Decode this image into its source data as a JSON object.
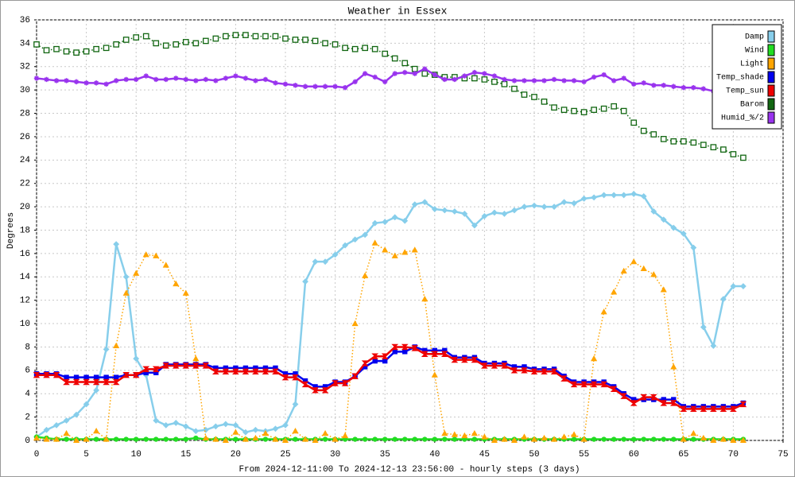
{
  "chart_data": {
    "type": "line",
    "title": "Weather in Essex",
    "ylabel": "Degrees",
    "xlabel": "From 2024-12-11:00 To 2024-12-13 23:56:00 - hourly steps (3 days)",
    "xlim": [
      0,
      75
    ],
    "xticks": [
      0,
      5,
      10,
      15,
      20,
      25,
      30,
      35,
      40,
      45,
      50,
      55,
      60,
      65,
      70,
      75
    ],
    "ylim": [
      0,
      36
    ],
    "yticks": [
      0,
      2,
      4,
      6,
      8,
      10,
      12,
      14,
      16,
      18,
      20,
      22,
      24,
      26,
      28,
      30,
      32,
      34,
      36
    ],
    "grid": true,
    "legend": "top-right",
    "x": [
      0,
      1,
      2,
      3,
      4,
      5,
      6,
      7,
      8,
      9,
      10,
      11,
      12,
      13,
      14,
      15,
      16,
      17,
      18,
      19,
      20,
      21,
      22,
      23,
      24,
      25,
      26,
      27,
      28,
      29,
      30,
      31,
      32,
      33,
      34,
      35,
      36,
      37,
      38,
      39,
      40,
      41,
      42,
      43,
      44,
      45,
      46,
      47,
      48,
      49,
      50,
      51,
      52,
      53,
      54,
      55,
      56,
      57,
      58,
      59,
      60,
      61,
      62,
      63,
      64,
      65,
      66,
      67,
      68,
      69,
      70,
      71
    ],
    "series": [
      {
        "name": "Damp",
        "color": "#87ceeb",
        "dash": false,
        "marker": "diamond",
        "values": [
          0.3,
          0.9,
          1.3,
          1.7,
          2.2,
          3.1,
          4.3,
          7.8,
          16.8,
          14.0,
          7.0,
          5.6,
          1.7,
          1.3,
          1.5,
          1.2,
          0.8,
          0.9,
          1.2,
          1.4,
          1.3,
          0.7,
          0.9,
          0.8,
          1.0,
          1.3,
          3.1,
          13.6,
          15.3,
          15.3,
          15.9,
          16.7,
          17.2,
          17.6,
          18.6,
          18.7,
          19.1,
          18.8,
          20.2,
          20.4,
          19.8,
          19.7,
          19.6,
          19.4,
          18.4,
          19.2,
          19.5,
          19.4,
          19.7,
          20.0,
          20.1,
          20.0,
          20.0,
          20.4,
          20.3,
          20.7,
          20.8,
          21.0,
          21.0,
          21.0,
          21.1,
          20.9,
          19.6,
          18.9,
          18.2,
          17.7,
          16.5,
          9.7,
          8.1,
          12.1,
          13.2,
          13.2
        ]
      },
      {
        "name": "Wind",
        "color": "#22dd22",
        "dash": false,
        "marker": "circle",
        "values": [
          0.3,
          0.2,
          0.1,
          0.1,
          0.1,
          0.1,
          0.1,
          0.1,
          0.1,
          0.1,
          0.1,
          0.1,
          0.1,
          0.1,
          0.1,
          0.1,
          0.2,
          0.1,
          0.1,
          0.1,
          0.1,
          0.1,
          0.1,
          0.1,
          0.1,
          0.1,
          0.1,
          0.1,
          0.1,
          0.1,
          0.1,
          0.1,
          0.1,
          0.1,
          0.1,
          0.1,
          0.1,
          0.1,
          0.1,
          0.1,
          0.1,
          0.1,
          0.1,
          0.1,
          0.1,
          0.1,
          0.1,
          0.1,
          0.1,
          0.1,
          0.1,
          0.1,
          0.1,
          0.1,
          0.1,
          0.1,
          0.1,
          0.1,
          0.1,
          0.1,
          0.1,
          0.1,
          0.1,
          0.1,
          0.1,
          0.1,
          0.1,
          0.1,
          0.1,
          0.1,
          0.1,
          0.1
        ]
      },
      {
        "name": "Light",
        "color": "#ffa500",
        "dash": true,
        "marker": "triangle",
        "values": [
          0.2,
          0.1,
          0.1,
          0.6,
          0,
          0.1,
          0.8,
          0.1,
          8.1,
          12.6,
          14.3,
          15.9,
          15.8,
          15.0,
          13.4,
          12.6,
          7.0,
          0.2,
          0.1,
          0,
          0.7,
          0.1,
          0.2,
          0.6,
          0.1,
          0,
          0.8,
          0.1,
          0,
          0.6,
          0.1,
          0.4,
          10.0,
          14.1,
          16.9,
          16.3,
          15.8,
          16.1,
          16.3,
          12.1,
          5.6,
          0.6,
          0.5,
          0.4,
          0.6,
          0.3,
          0,
          0.1,
          0,
          0.3,
          0.1,
          0.2,
          0.1,
          0.3,
          0.5,
          0.1,
          7.0,
          11.0,
          12.7,
          14.5,
          15.3,
          14.7,
          14.2,
          12.9,
          6.3,
          0.1,
          0.6,
          0.2,
          0,
          0.1,
          0,
          0
        ]
      },
      {
        "name": "Temp_shade",
        "color": "#0000ee",
        "dash": false,
        "marker": "square",
        "values": [
          5.7,
          5.7,
          5.7,
          5.4,
          5.4,
          5.4,
          5.4,
          5.4,
          5.4,
          5.6,
          5.6,
          5.8,
          5.8,
          6.5,
          6.5,
          6.5,
          6.5,
          6.5,
          6.2,
          6.2,
          6.2,
          6.2,
          6.2,
          6.2,
          6.2,
          5.7,
          5.7,
          5.1,
          4.6,
          4.6,
          5.0,
          5.0,
          5.5,
          6.3,
          6.8,
          6.8,
          7.6,
          7.6,
          8.0,
          7.7,
          7.7,
          7.7,
          7.1,
          7.1,
          7.1,
          6.6,
          6.6,
          6.6,
          6.3,
          6.3,
          6.1,
          6.1,
          6.1,
          5.5,
          5.0,
          5.0,
          5.0,
          5.0,
          4.6,
          4.0,
          3.5,
          3.5,
          3.5,
          3.5,
          3.5,
          2.9,
          2.9,
          2.9,
          2.9,
          2.9,
          2.9,
          3.2
        ]
      },
      {
        "name": "Temp_sun",
        "color": "#ee0000",
        "dash": false,
        "marker": "bowtie",
        "values": [
          5.6,
          5.6,
          5.6,
          5.0,
          5.0,
          5.0,
          5.0,
          5.0,
          5.0,
          5.6,
          5.6,
          6.1,
          6.1,
          6.4,
          6.4,
          6.4,
          6.4,
          6.4,
          5.9,
          5.9,
          5.9,
          5.9,
          5.9,
          5.9,
          5.9,
          5.4,
          5.4,
          4.8,
          4.3,
          4.3,
          4.9,
          4.9,
          5.5,
          6.6,
          7.2,
          7.2,
          8.0,
          8.0,
          7.9,
          7.4,
          7.4,
          7.4,
          6.9,
          6.9,
          6.9,
          6.4,
          6.4,
          6.4,
          6.0,
          6.0,
          5.9,
          5.9,
          5.9,
          5.3,
          4.8,
          4.8,
          4.8,
          4.8,
          4.4,
          3.8,
          3.2,
          3.7,
          3.7,
          3.2,
          3.2,
          2.7,
          2.7,
          2.7,
          2.7,
          2.7,
          2.7,
          3.1
        ]
      },
      {
        "name": "Barom",
        "color": "#116611",
        "dash": true,
        "marker": "opensquare",
        "values": [
          33.9,
          33.4,
          33.5,
          33.3,
          33.2,
          33.3,
          33.5,
          33.6,
          33.9,
          34.3,
          34.5,
          34.6,
          34.0,
          33.8,
          33.9,
          34.1,
          34.0,
          34.2,
          34.4,
          34.6,
          34.7,
          34.7,
          34.6,
          34.6,
          34.6,
          34.4,
          34.3,
          34.3,
          34.2,
          34.0,
          33.9,
          33.6,
          33.5,
          33.6,
          33.5,
          33.1,
          32.7,
          32.3,
          31.8,
          31.4,
          31.3,
          31.1,
          31.1,
          31.0,
          31.0,
          30.9,
          30.7,
          30.5,
          30.1,
          29.6,
          29.4,
          29.0,
          28.5,
          28.3,
          28.2,
          28.1,
          28.3,
          28.4,
          28.6,
          28.2,
          27.2,
          26.5,
          26.2,
          25.8,
          25.6,
          25.6,
          25.5,
          25.3,
          25.1,
          24.9,
          24.5,
          24.2
        ]
      },
      {
        "name": "Humid_%/2",
        "color": "#9933ee",
        "dash": false,
        "marker": "star",
        "values": [
          31.0,
          30.9,
          30.8,
          30.8,
          30.7,
          30.6,
          30.6,
          30.5,
          30.8,
          30.9,
          30.9,
          31.2,
          30.9,
          30.9,
          31.0,
          30.9,
          30.8,
          30.9,
          30.8,
          31.0,
          31.2,
          31.0,
          30.8,
          30.9,
          30.6,
          30.5,
          30.4,
          30.3,
          30.3,
          30.3,
          30.3,
          30.2,
          30.7,
          31.4,
          31.1,
          30.7,
          31.4,
          31.5,
          31.4,
          31.8,
          31.3,
          30.9,
          30.9,
          31.2,
          31.5,
          31.4,
          31.2,
          30.9,
          30.8,
          30.8,
          30.8,
          30.8,
          30.9,
          30.8,
          30.8,
          30.7,
          31.1,
          31.3,
          30.8,
          31.0,
          30.5,
          30.6,
          30.4,
          30.4,
          30.3,
          30.2,
          30.2,
          30.1,
          29.9,
          30.0,
          30.1,
          30.2
        ]
      }
    ]
  }
}
